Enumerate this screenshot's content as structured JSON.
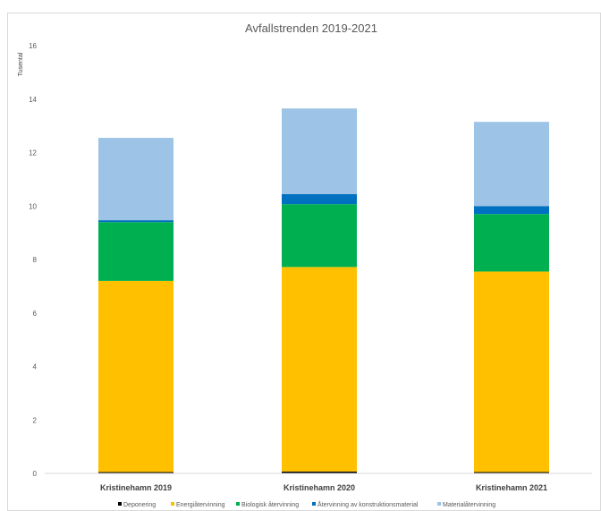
{
  "chart_data": {
    "type": "bar",
    "stacked": true,
    "title": "Avfallstrenden 2019-2021",
    "ylabel": "Tusental",
    "xlabel": "",
    "ylim": [
      0,
      16
    ],
    "yticks": [
      "0",
      "2",
      "4",
      "6",
      "8",
      "10",
      "12",
      "14",
      "16"
    ],
    "grid": false,
    "legend": "bottom",
    "categories": [
      "Kristinehamn 2019",
      "Kristinehamn 2020",
      "Kristinehamn 2021"
    ],
    "series": [
      {
        "name": "Deponering",
        "color": "#000000",
        "values": [
          0.05,
          0.07,
          0.05
        ]
      },
      {
        "name": "Energiåtervinning",
        "color": "#ffc000",
        "values": [
          7.15,
          7.65,
          7.5
        ]
      },
      {
        "name": "Biologisk återvinning",
        "color": "#00b050",
        "values": [
          2.2,
          2.35,
          2.15
        ]
      },
      {
        "name": "Återvinning av konstruktionsmaterial",
        "color": "#0070c0",
        "values": [
          0.07,
          0.38,
          0.3
        ]
      },
      {
        "name": "Materialåtervinning",
        "color": "#9dc3e6",
        "values": [
          3.08,
          3.2,
          3.15
        ]
      }
    ]
  }
}
